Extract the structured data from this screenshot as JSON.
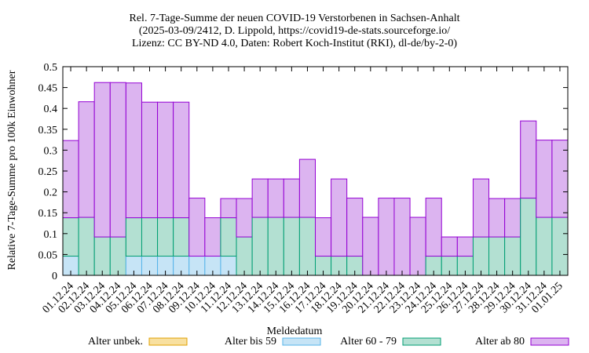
{
  "chart_data": {
    "type": "bar",
    "stacked": true,
    "title": [
      "Rel. 7-Tage-Summe der neuen COVID-19 Verstorbenen in Sachsen-Anhalt",
      "(2025-03-09/2412, D. Lippold, https://covid19-de-stats.sourceforge.io/",
      "Lizenz: CC BY-ND 4.0, Daten: Robert Koch-Institut (RKI), dl-de/by-2-0)"
    ],
    "xlabel": "Meldedatum",
    "ylabel": "Relative 7-Tage-Summe pro 100k Einwohner",
    "ylim": [
      0,
      0.5
    ],
    "yticks": [
      "0",
      "0.05",
      "0.1",
      "0.15",
      "0.2",
      "0.25",
      "0.3",
      "0.35",
      "0.4",
      "0.45",
      "0.5"
    ],
    "categories": [
      "01.12.24",
      "02.12.24",
      "03.12.24",
      "04.12.24",
      "05.12.24",
      "06.12.24",
      "07.12.24",
      "08.12.24",
      "09.12.24",
      "10.12.24",
      "11.12.24",
      "12.12.24",
      "13.12.24",
      "14.12.24",
      "15.12.24",
      "16.12.24",
      "17.12.24",
      "18.12.24",
      "19.12.24",
      "20.12.24",
      "21.12.24",
      "22.12.24",
      "23.12.24",
      "24.12.24",
      "25.12.24",
      "26.12.24",
      "27.12.24",
      "28.12.24",
      "29.12.24",
      "30.12.24",
      "31.12.24",
      "01.01.25"
    ],
    "series": [
      {
        "name": "Alter unbek.",
        "color": "#f8e0a0",
        "edge": "#e0a000",
        "values": [
          0,
          0,
          0,
          0,
          0,
          0,
          0,
          0,
          0,
          0,
          0,
          0,
          0,
          0,
          0,
          0,
          0,
          0,
          0,
          0,
          0,
          0,
          0,
          0,
          0,
          0,
          0,
          0,
          0,
          0,
          0,
          0
        ]
      },
      {
        "name": "Alter bis 59",
        "color": "#c6e4f6",
        "edge": "#56b4e9",
        "values": [
          0.046,
          0,
          0,
          0,
          0.046,
          0.046,
          0.046,
          0.046,
          0.046,
          0.046,
          0.046,
          0,
          0,
          0,
          0,
          0,
          0,
          0,
          0,
          0,
          0,
          0,
          0,
          0,
          0,
          0,
          0,
          0,
          0,
          0,
          0,
          0
        ]
      },
      {
        "name": "Alter 60 - 79",
        "color": "#b3e0d2",
        "edge": "#009e73",
        "values": [
          0.092,
          0.139,
          0.092,
          0.092,
          0.092,
          0.092,
          0.092,
          0.092,
          0,
          0,
          0.092,
          0.092,
          0.139,
          0.139,
          0.139,
          0.139,
          0.046,
          0.046,
          0.046,
          0,
          0,
          0,
          0,
          0.046,
          0.046,
          0.046,
          0.092,
          0.092,
          0.092,
          0.185,
          0.139,
          0.139
        ]
      },
      {
        "name": "Alter ab 80",
        "color": "#dcb4f0",
        "edge": "#9400d3",
        "values": [
          0.185,
          0.277,
          0.37,
          0.37,
          0.323,
          0.277,
          0.277,
          0.277,
          0.139,
          0.092,
          0.046,
          0.092,
          0.092,
          0.092,
          0.092,
          0.139,
          0.092,
          0.185,
          0.139,
          0.139,
          0.185,
          0.185,
          0.139,
          0.139,
          0.046,
          0.046,
          0.139,
          0.092,
          0.092,
          0.185,
          0.185,
          0.185
        ]
      }
    ],
    "legend_position": "bottom",
    "grid": false
  }
}
